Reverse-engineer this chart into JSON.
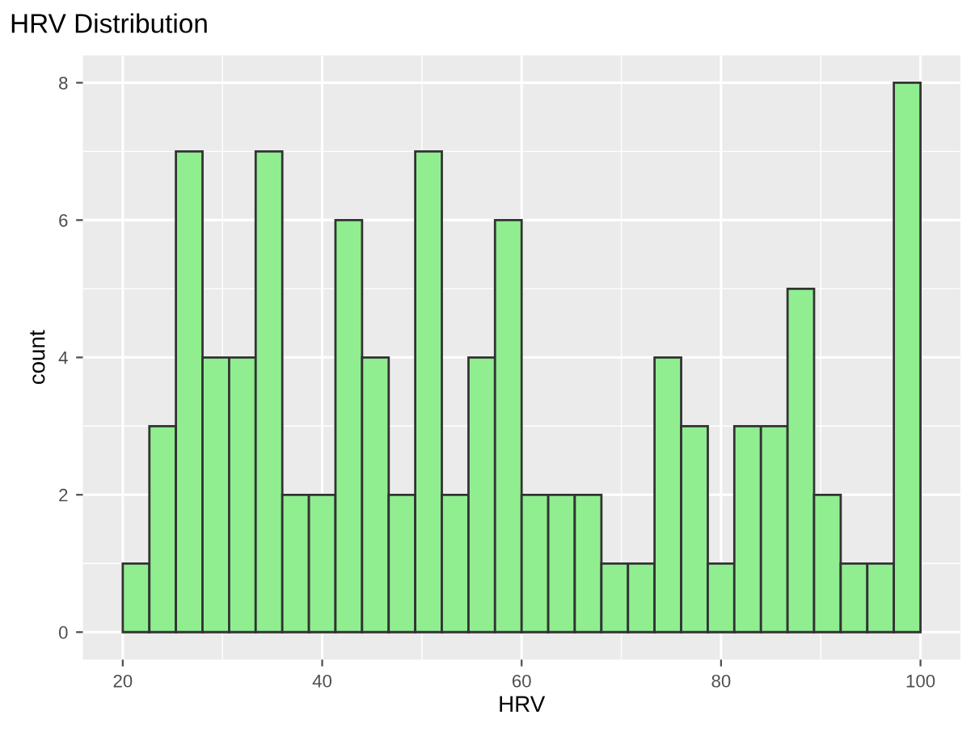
{
  "chart_data": {
    "type": "histogram",
    "title": "HRV Distribution",
    "xlabel": "HRV",
    "ylabel": "count",
    "bins": [
      20,
      22.67,
      25.33,
      28,
      30.67,
      33.33,
      36,
      38.67,
      41.33,
      44,
      46.67,
      49.33,
      52,
      54.67,
      57.33,
      60,
      62.67,
      65.33,
      68,
      70.67,
      73.33,
      76,
      78.67,
      81.33,
      84,
      86.67,
      89.33,
      92,
      94.67,
      97.33,
      100
    ],
    "values": [
      1,
      3,
      7,
      4,
      4,
      7,
      2,
      2,
      6,
      4,
      2,
      7,
      2,
      4,
      6,
      2,
      2,
      2,
      1,
      1,
      4,
      3,
      1,
      3,
      3,
      5,
      2,
      1,
      1,
      8
    ],
    "color": "#90ee90",
    "xlim": [
      16,
      104
    ],
    "xticks": [
      20,
      40,
      60,
      80,
      100
    ],
    "ylim": [
      -0.4,
      8.4
    ],
    "yticks": [
      0,
      2,
      4,
      6,
      8
    ],
    "grid": true
  }
}
